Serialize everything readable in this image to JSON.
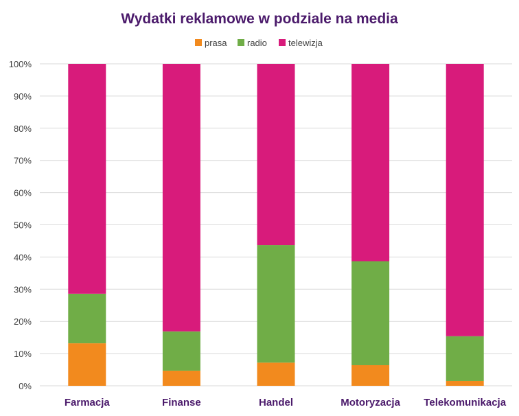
{
  "colors": {
    "prasa": "#f28a1e",
    "radio": "#70ad47",
    "telewizja": "#d81b7b",
    "title": "#4b1a6b",
    "grid": "#d9d9d9",
    "axis_text": "#404040"
  },
  "chart_data": {
    "type": "bar",
    "stacked": "percent",
    "title": "Wydatki reklamowe w podziale na media",
    "xlabel": "",
    "ylabel": "",
    "ylim": [
      0,
      100
    ],
    "yticks": [
      "0%",
      "10%",
      "20%",
      "30%",
      "40%",
      "50%",
      "60%",
      "70%",
      "80%",
      "90%",
      "100%"
    ],
    "grid": true,
    "legend_position": "top",
    "categories": [
      "Farmacja",
      "Finanse",
      "Handel",
      "Motoryzacja",
      "Telekomunikacja"
    ],
    "series": [
      {
        "name": "prasa",
        "values": [
          13.2,
          4.7,
          7.2,
          6.4,
          1.5
        ]
      },
      {
        "name": "radio",
        "values": [
          15.4,
          12.2,
          36.5,
          32.3,
          13.9
        ]
      },
      {
        "name": "telewizja",
        "values": [
          71.4,
          83.1,
          56.3,
          61.3,
          84.6
        ]
      }
    ]
  }
}
